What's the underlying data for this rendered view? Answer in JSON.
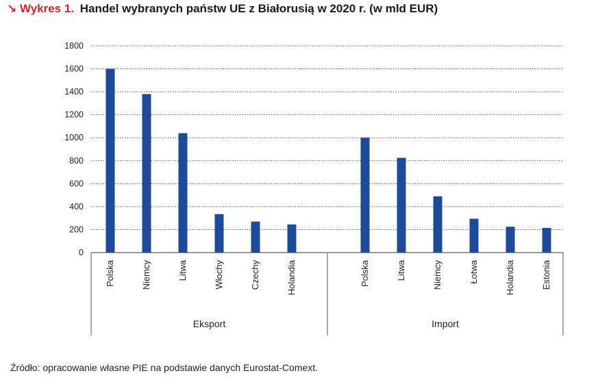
{
  "title_prefix": "↘ Wykres 1.",
  "title": "Handel wybranych państw UE z Białorusią w 2020 r. (w mld EUR)",
  "source": "Źródło: opracowanie własne PIE na podstawie danych Eurostat-Comext.",
  "colors": {
    "bar": "#1e4a9a",
    "accent": "#d2232a",
    "grid": "#555555"
  },
  "chart_data": {
    "type": "bar",
    "title": "Handel wybranych państw UE z Białorusią w 2020 r. (w mld EUR)",
    "ylim": [
      0,
      1800
    ],
    "yticks": [
      0,
      200,
      400,
      600,
      800,
      1000,
      1200,
      1400,
      1600,
      1800
    ],
    "grid": "horizontal dotted",
    "groups": [
      {
        "name": "Eksport",
        "categories": [
          "Polska",
          "Niemcy",
          "Litwa",
          "Włochy",
          "Czechy",
          "Holandia"
        ],
        "values": [
          1600,
          1380,
          1040,
          335,
          270,
          245
        ]
      },
      {
        "name": "Import",
        "categories": [
          "Polska",
          "Litwa",
          "Niemcy",
          "Łotwa",
          "Holandia",
          "Estonia"
        ],
        "values": [
          1000,
          825,
          490,
          295,
          225,
          215
        ]
      }
    ]
  }
}
